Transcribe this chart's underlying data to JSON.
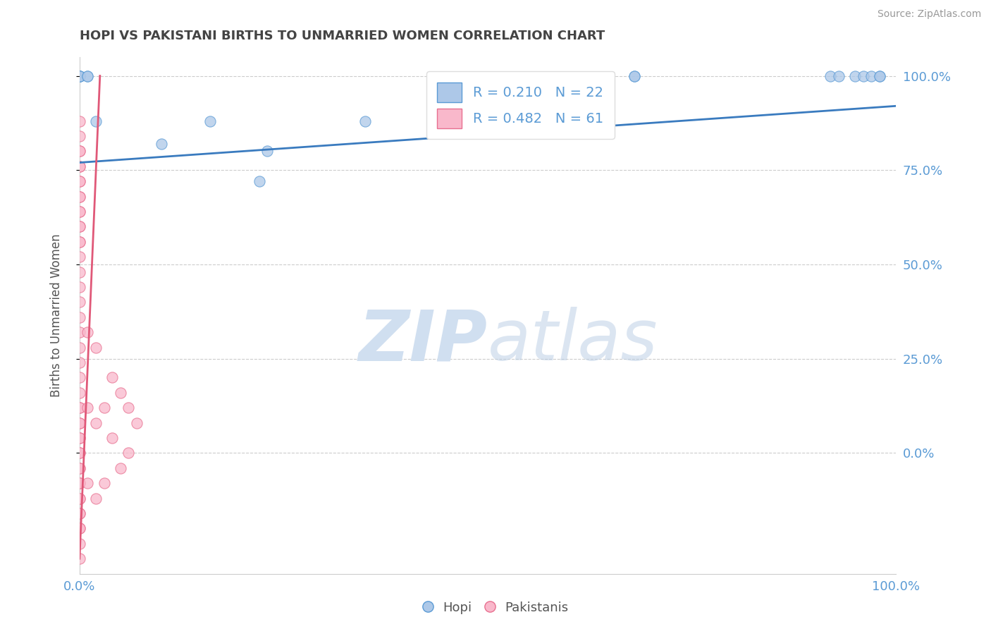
{
  "title": "HOPI VS PAKISTANI BIRTHS TO UNMARRIED WOMEN CORRELATION CHART",
  "source": "Source: ZipAtlas.com",
  "ylabel": "Births to Unmarried Women",
  "xlabel_hopi": "Hopi",
  "xlabel_pakistanis": "Pakistanis",
  "hopi_R": 0.21,
  "hopi_N": 22,
  "pakistani_R": 0.482,
  "pakistani_N": 61,
  "hopi_color": "#adc8e8",
  "hopi_edge_color": "#5b9bd5",
  "hopi_line_color": "#3a7bbf",
  "pakistani_color": "#f9b8cb",
  "pakistani_edge_color": "#e87090",
  "pakistani_line_color": "#e05878",
  "hopi_x": [
    0.0,
    0.0,
    0.0,
    0.0,
    0.01,
    0.01,
    0.02,
    0.1,
    0.16,
    0.22,
    0.23,
    0.35,
    0.57,
    0.68,
    0.68,
    0.92,
    0.93,
    0.95,
    0.96,
    0.97,
    0.98,
    0.98
  ],
  "hopi_y": [
    1.0,
    1.0,
    1.0,
    1.0,
    1.0,
    1.0,
    0.88,
    0.82,
    0.88,
    0.72,
    0.8,
    0.88,
    0.88,
    1.0,
    1.0,
    1.0,
    1.0,
    1.0,
    1.0,
    1.0,
    1.0,
    1.0
  ],
  "pak_x": [
    0.0,
    0.0,
    0.0,
    0.0,
    0.0,
    0.0,
    0.0,
    0.0,
    0.0,
    0.0,
    0.0,
    0.0,
    0.0,
    0.0,
    0.0,
    0.0,
    0.0,
    0.0,
    0.0,
    0.0,
    0.0,
    0.0,
    0.0,
    0.0,
    0.0,
    0.0,
    0.0,
    0.0,
    0.0,
    0.0,
    0.0,
    0.0,
    0.0,
    0.0,
    0.0,
    0.0,
    0.0,
    0.0,
    0.0,
    0.0,
    0.0,
    0.0,
    0.0,
    0.0,
    0.0,
    0.0,
    0.01,
    0.01,
    0.01,
    0.02,
    0.02,
    0.02,
    0.03,
    0.03,
    0.04,
    0.04,
    0.05,
    0.05,
    0.06,
    0.06,
    0.07
  ],
  "pak_y": [
    0.88,
    0.84,
    0.8,
    0.76,
    0.72,
    0.68,
    0.64,
    0.6,
    0.56,
    0.52,
    0.48,
    0.44,
    0.4,
    0.36,
    0.32,
    0.28,
    0.24,
    0.2,
    0.16,
    0.12,
    0.08,
    0.04,
    0.0,
    -0.04,
    -0.08,
    -0.12,
    -0.16,
    -0.2,
    -0.24,
    -0.28,
    -0.04,
    -0.08,
    -0.12,
    -0.16,
    -0.2,
    0.0,
    0.04,
    0.08,
    0.12,
    0.56,
    0.6,
    0.64,
    0.68,
    0.72,
    0.76,
    0.8,
    -0.08,
    0.12,
    0.32,
    -0.12,
    0.08,
    0.28,
    -0.08,
    0.12,
    0.04,
    0.2,
    -0.04,
    0.16,
    0.0,
    0.12,
    0.08
  ],
  "hopi_line_x0": 0.0,
  "hopi_line_y0": 0.77,
  "hopi_line_x1": 1.0,
  "hopi_line_y1": 0.92,
  "pak_line_x0": 0.0,
  "pak_line_y0": -0.28,
  "pak_line_x1": 0.025,
  "pak_line_y1": 1.0,
  "xlim": [
    0.0,
    1.0
  ],
  "ylim": [
    -0.32,
    1.05
  ],
  "ytick_positions": [
    0.0,
    0.25,
    0.5,
    0.75,
    1.0
  ],
  "ytick_labels_right": [
    "0.0%",
    "25.0%",
    "50.0%",
    "75.0%",
    "100.0%"
  ],
  "xtick_positions": [
    0.0,
    1.0
  ],
  "xtick_labels": [
    "0.0%",
    "100.0%"
  ],
  "background_color": "#ffffff",
  "grid_color": "#cccccc",
  "title_color": "#444444",
  "tick_color": "#5b9bd5",
  "watermark_color": "#d0dff0",
  "source_color": "#999999"
}
